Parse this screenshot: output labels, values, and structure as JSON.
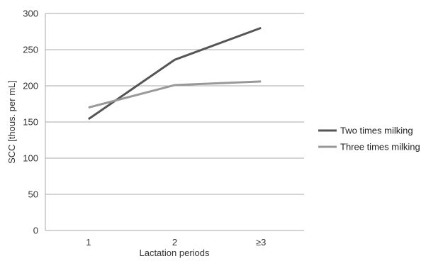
{
  "chart_data": {
    "type": "line",
    "categories": [
      "1",
      "2",
      "≥3"
    ],
    "series": [
      {
        "name": "Two times milking",
        "values": [
          154,
          236,
          280
        ],
        "color": "#555555"
      },
      {
        "name": "Three times milking",
        "values": [
          170,
          201,
          206
        ],
        "color": "#999999"
      }
    ],
    "title": "",
    "xlabel": "Lactation periods",
    "ylabel": "SCC [thous. per mL]",
    "ylim": [
      0,
      300
    ],
    "yticks": [
      0,
      50,
      100,
      150,
      200,
      250,
      300
    ],
    "grid": true,
    "legend_position": "right"
  }
}
